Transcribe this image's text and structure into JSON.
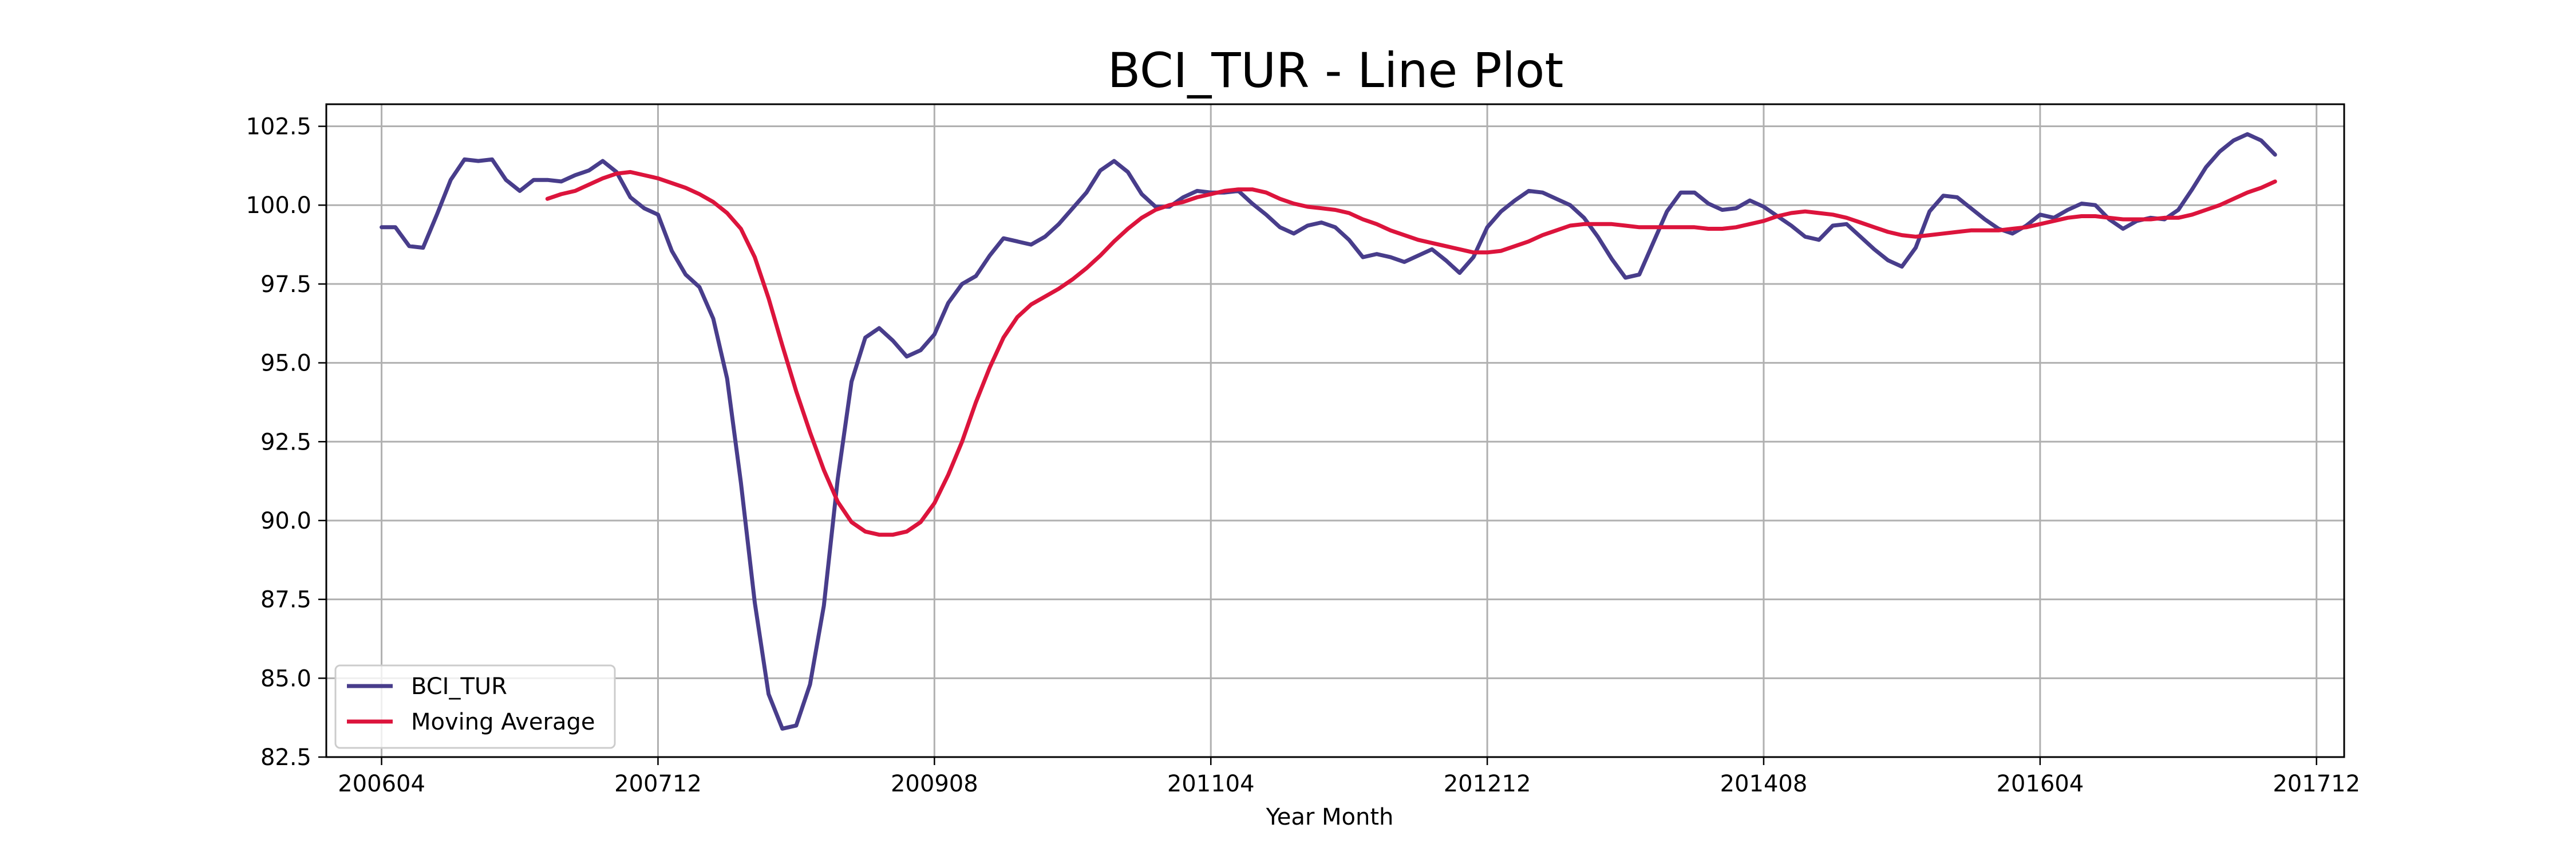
{
  "chart_data": {
    "type": "line",
    "title": "BCI_TUR - Line Plot",
    "xlabel": "Year Month",
    "ylabel": "",
    "x_start": "2006-04",
    "x_tick_labels": [
      "200604",
      "200712",
      "200908",
      "201104",
      "201212",
      "201408",
      "201604",
      "201712"
    ],
    "x_tick_positions": [
      "2006-04",
      "2007-12",
      "2009-08",
      "2011-04",
      "2012-12",
      "2014-08",
      "2016-04",
      "2017-12"
    ],
    "xlim": [
      "2005-12",
      "2018-02"
    ],
    "ylim": [
      82.5,
      103.2
    ],
    "y_ticks": [
      82.5,
      85.0,
      87.5,
      90.0,
      92.5,
      95.0,
      97.5,
      100.0,
      102.5
    ],
    "y_tick_labels": [
      "82.5",
      "85.0",
      "87.5",
      "90.0",
      "92.5",
      "95.0",
      "97.5",
      "100.0",
      "102.5"
    ],
    "grid": true,
    "legend_position": "lower-left",
    "series": [
      {
        "name": "BCI_TUR",
        "color": "#483D8B",
        "start": "2006-04",
        "values": [
          99.3,
          99.3,
          98.7,
          98.65,
          99.7,
          100.8,
          101.45,
          101.4,
          101.45,
          100.8,
          100.45,
          100.8,
          100.8,
          100.75,
          100.95,
          101.1,
          101.4,
          101.05,
          100.25,
          99.9,
          99.7,
          98.55,
          97.8,
          97.4,
          96.4,
          94.5,
          91.2,
          87.4,
          84.5,
          83.4,
          83.5,
          84.8,
          87.3,
          91.3,
          94.4,
          95.8,
          96.1,
          95.7,
          95.2,
          95.4,
          95.9,
          96.9,
          97.5,
          97.75,
          98.4,
          98.95,
          98.85,
          98.75,
          99.0,
          99.4,
          99.9,
          100.4,
          101.1,
          101.4,
          101.05,
          100.35,
          99.95,
          99.95,
          100.25,
          100.45,
          100.4,
          100.4,
          100.45,
          100.05,
          99.7,
          99.3,
          99.1,
          99.35,
          99.45,
          99.3,
          98.9,
          98.35,
          98.45,
          98.35,
          98.2,
          98.4,
          98.6,
          98.25,
          97.85,
          98.35,
          99.3,
          99.8,
          100.15,
          100.45,
          100.4,
          100.2,
          100.0,
          99.6,
          99.0,
          98.3,
          97.7,
          97.8,
          98.8,
          99.8,
          100.4,
          100.4,
          100.05,
          99.85,
          99.9,
          100.15,
          99.95,
          99.65,
          99.35,
          99.0,
          98.9,
          99.35,
          99.4,
          99.0,
          98.6,
          98.25,
          98.05,
          98.65,
          99.8,
          100.3,
          100.25,
          99.9,
          99.55,
          99.25,
          99.1,
          99.35,
          99.7,
          99.6,
          99.85,
          100.05,
          100.0,
          99.55,
          99.25,
          99.5,
          99.6,
          99.55,
          99.85,
          100.5,
          101.2,
          101.7,
          102.05,
          102.25,
          102.05,
          101.6
        ]
      },
      {
        "name": "Moving Average",
        "color": "#DC143C",
        "start": "2007-04",
        "values": [
          100.2,
          100.35,
          100.45,
          100.65,
          100.85,
          101.0,
          101.05,
          100.95,
          100.85,
          100.7,
          100.55,
          100.35,
          100.1,
          99.75,
          99.25,
          98.35,
          97.05,
          95.55,
          94.1,
          92.8,
          91.6,
          90.6,
          89.95,
          89.65,
          89.55,
          89.55,
          89.65,
          89.95,
          90.55,
          91.45,
          92.5,
          93.75,
          94.85,
          95.8,
          96.45,
          96.85,
          97.1,
          97.35,
          97.65,
          98.0,
          98.4,
          98.85,
          99.25,
          99.6,
          99.85,
          100.0,
          100.1,
          100.25,
          100.35,
          100.45,
          100.5,
          100.5,
          100.4,
          100.2,
          100.05,
          99.95,
          99.9,
          99.85,
          99.75,
          99.55,
          99.4,
          99.2,
          99.05,
          98.9,
          98.8,
          98.7,
          98.6,
          98.5,
          98.5,
          98.55,
          98.7,
          98.85,
          99.05,
          99.2,
          99.35,
          99.4,
          99.4,
          99.4,
          99.35,
          99.3,
          99.3,
          99.3,
          99.3,
          99.3,
          99.25,
          99.25,
          99.3,
          99.4,
          99.5,
          99.65,
          99.75,
          99.8,
          99.75,
          99.7,
          99.6,
          99.45,
          99.3,
          99.15,
          99.05,
          99.0,
          99.05,
          99.1,
          99.15,
          99.2,
          99.2,
          99.2,
          99.25,
          99.3,
          99.4,
          99.5,
          99.6,
          99.65,
          99.65,
          99.6,
          99.55,
          99.55,
          99.55,
          99.6,
          99.6,
          99.7,
          99.85,
          100.0,
          100.2,
          100.4,
          100.55,
          100.75
        ]
      }
    ]
  }
}
